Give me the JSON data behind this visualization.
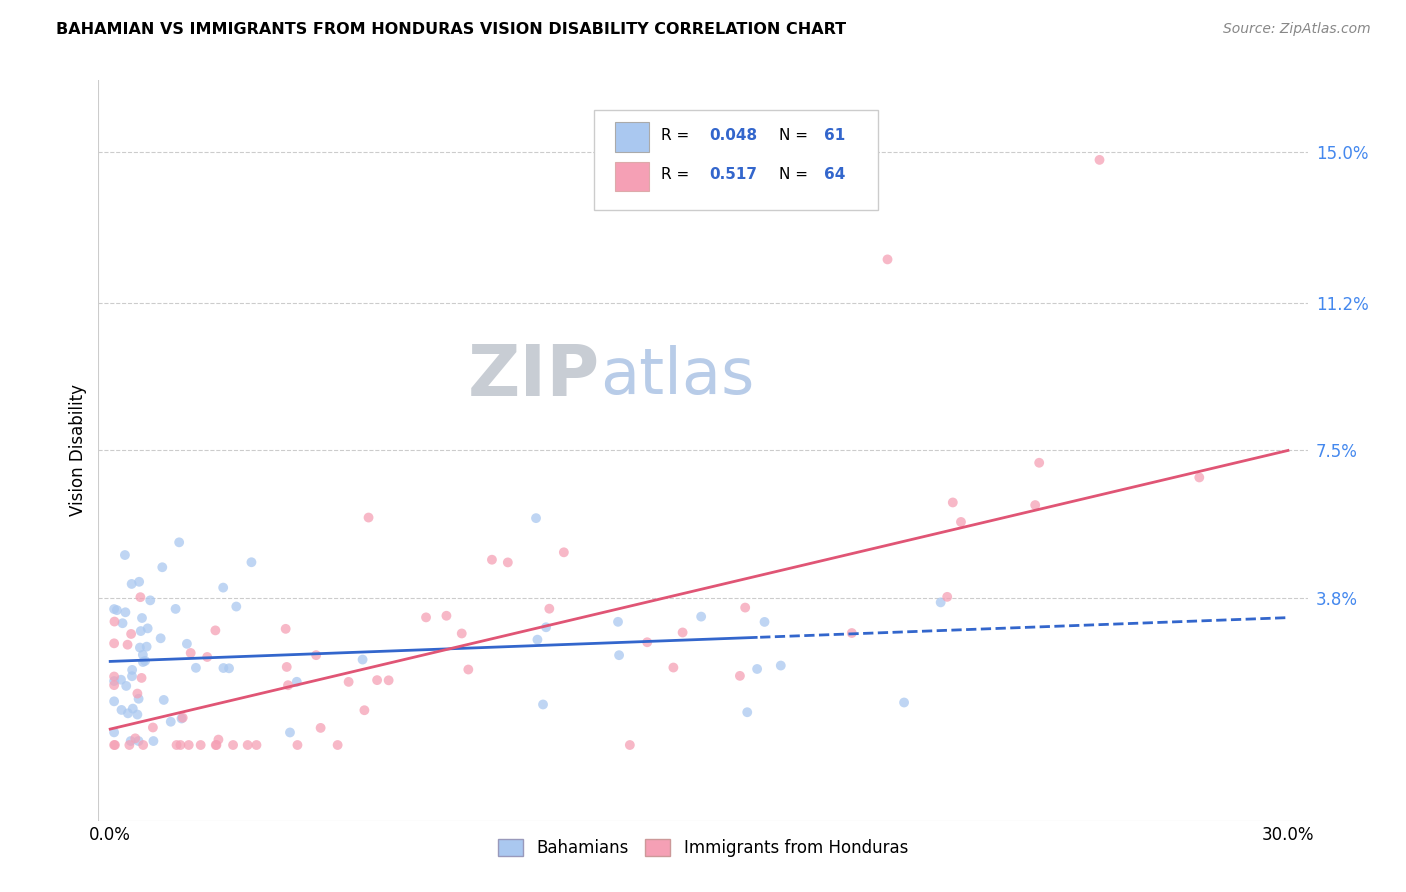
{
  "title": "BAHAMIAN VS IMMIGRANTS FROM HONDURAS VISION DISABILITY CORRELATION CHART",
  "source": "Source: ZipAtlas.com",
  "ylabel": "Vision Disability",
  "right_ytick_labels": [
    "15.0%",
    "11.2%",
    "7.5%",
    "3.8%"
  ],
  "right_ytick_values": [
    0.15,
    0.112,
    0.075,
    0.038
  ],
  "xlim": [
    -0.003,
    0.305
  ],
  "ylim": [
    -0.018,
    0.168
  ],
  "bahamian_color": "#aac8f0",
  "honduras_color": "#f5a0b5",
  "trend_blue": "#3366cc",
  "trend_pink": "#e05575",
  "background_color": "#ffffff",
  "zip_color": "#c8cdd4",
  "atlas_color": "#b8cce8",
  "watermark_fontsize": 52,
  "title_fontsize": 11.5,
  "source_fontsize": 10
}
